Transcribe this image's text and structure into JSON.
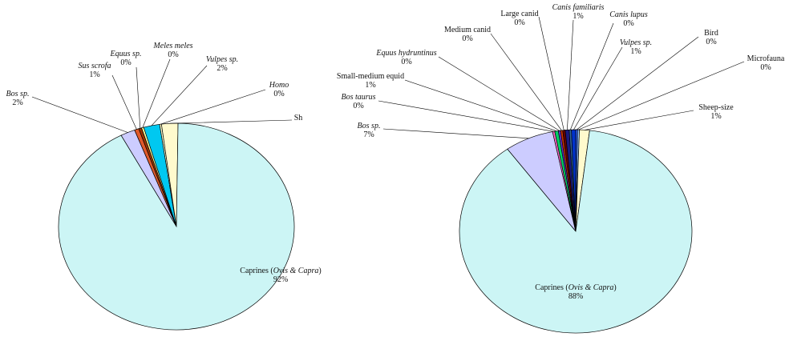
{
  "chart_data": [
    {
      "type": "pie",
      "slices": [
        {
          "label": "Caprines (Ovis & Capra)",
          "pct_label": "92%",
          "value": 92,
          "color": "#ccf5f5"
        },
        {
          "label": "Bos sp.",
          "pct_label": "2%",
          "value": 2.0,
          "color": "#ccccff"
        },
        {
          "label": "Sus scrofa",
          "pct_label": "1%",
          "value": 0.6,
          "color": "#e05a2b"
        },
        {
          "label": "Equus sp.",
          "pct_label": "0%",
          "value": 0.4,
          "color": "#993300"
        },
        {
          "label": "Meles meles",
          "pct_label": "0%",
          "value": 0.3,
          "color": "#ffff99"
        },
        {
          "label": "Vulpes sp.",
          "pct_label": "2%",
          "value": 2.2,
          "color": "#00c8f0"
        },
        {
          "label": "Homo",
          "pct_label": "0%",
          "value": 0.25,
          "color": "#ffffcc"
        },
        {
          "label": "Sh",
          "pct_label": "",
          "value": 2.25,
          "color": "#fffacd"
        }
      ]
    },
    {
      "type": "pie",
      "slices": [
        {
          "label": "Caprines (Ovis & Capra)",
          "pct_label": "88%",
          "value": 88,
          "color": "#ccf5f5"
        },
        {
          "label": "Bos sp.",
          "pct_label": "7%",
          "value": 6.8,
          "color": "#ccccff"
        },
        {
          "label": "Bos taurus",
          "pct_label": "0%",
          "value": 0.3,
          "color": "#ff66cc"
        },
        {
          "label": "Small-medium equid",
          "pct_label": "1%",
          "value": 0.5,
          "color": "#00cc66"
        },
        {
          "label": "Equus hydruntinus",
          "pct_label": "0%",
          "value": 0.3,
          "color": "#6633cc"
        },
        {
          "label": "Medium canid",
          "pct_label": "0%",
          "value": 0.3,
          "color": "#cc3300"
        },
        {
          "label": "Large canid",
          "pct_label": "0%",
          "value": 0.35,
          "color": "#660000"
        },
        {
          "label": "Canis familiaris",
          "pct_label": "1%",
          "value": 0.55,
          "color": "#1a1a80"
        },
        {
          "label": "Canis lupus",
          "pct_label": "0%",
          "value": 0.3,
          "color": "#336699"
        },
        {
          "label": "Vulpes sp.",
          "pct_label": "1%",
          "value": 0.6,
          "color": "#0033cc"
        },
        {
          "label": "Bird",
          "pct_label": "0%",
          "value": 0.25,
          "color": "#3366ff"
        },
        {
          "label": "Microfauna",
          "pct_label": "0%",
          "value": 0.25,
          "color": "#99ccff"
        },
        {
          "label": "Sheep-size",
          "pct_label": "1%",
          "value": 1.4,
          "color": "#fffacd"
        }
      ]
    }
  ]
}
